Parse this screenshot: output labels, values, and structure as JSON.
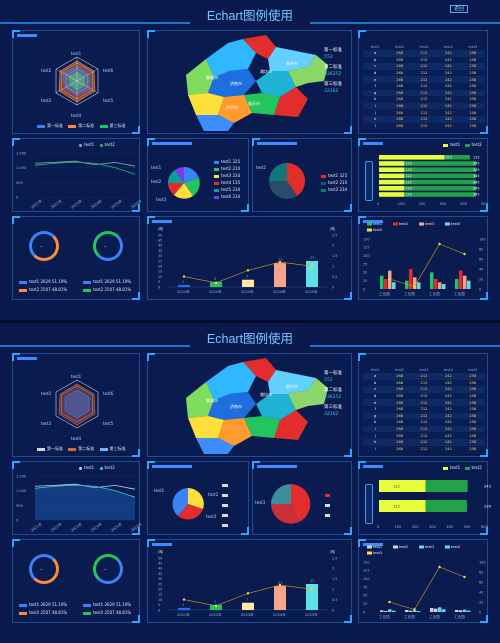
{
  "title": "Echart图例使用",
  "top_button": "返回",
  "radar": {
    "indicators": [
      "test1",
      "test6",
      "test5",
      "test4",
      "test3",
      "test2"
    ],
    "legend": [
      "第一标准",
      "第二标准",
      "第三标准"
    ]
  },
  "line_legend": [
    "test1",
    "test2"
  ],
  "line_chart": {
    "type": "line",
    "x": [
      "2021年",
      "2022年",
      "2023年",
      "2024年",
      "2025年",
      "2026年"
    ],
    "yticks": [
      "1,500",
      "1,000",
      "500",
      "0"
    ],
    "series": [
      {
        "name": "test1",
        "values": [
          1150,
          1180,
          1220,
          1100,
          1180,
          1050
        ]
      },
      {
        "name": "test2",
        "values": [
          1080,
          1150,
          1190,
          1150,
          1000,
          780
        ]
      }
    ]
  },
  "rings": [
    {
      "center": "--",
      "rows": [
        "test1  2629  51.19%",
        "test2  2507  48.81%"
      ],
      "colors": [
        "#3b82f6",
        "#ff8a3d"
      ]
    },
    {
      "center": "--",
      "rows": [
        "test1  2629  51.19%",
        "test2  2507  48.81%"
      ],
      "colors": [
        "#3b82f6",
        "#22c55e"
      ]
    }
  ],
  "map": {
    "regions": [
      "济南市",
      "淄博市",
      "潍坊市",
      "临沂市",
      "日照市",
      "青岛市",
      "烟台市",
      "威海市",
      "泰安市",
      "济宁市",
      "菏泽市",
      "聊城市",
      "德州市",
      "滨州市",
      "东营市",
      "枣庄市"
    ],
    "legend": [
      {
        "label": "第一标准",
        "value": "553"
      },
      {
        "label": "第二标准",
        "value": "836252"
      },
      {
        "label": "第三标准",
        "value": "32162"
      }
    ]
  },
  "pie1_legend": [
    "test1  325",
    "test2  210",
    "test3  234",
    "test4  135",
    "test5  234",
    "test6  234"
  ],
  "pie1_labels": [
    "test1",
    "test2",
    "test3",
    "test4",
    "test5",
    "test6"
  ],
  "pie2_legend": [
    "test1  325",
    "test2  210",
    "test3  234"
  ],
  "pie2_labels": [
    "test1",
    "test2",
    "test3"
  ],
  "pie2b_legend": [
    "test1",
    "test2",
    "test3"
  ],
  "combo": {
    "ylabel_left": "/吨",
    "ylabel_right": "/吨",
    "x": [
      "2021年",
      "2022年",
      "2023年",
      "2024年",
      "2025年"
    ],
    "bars": [
      2,
      5,
      7,
      23,
      25
    ],
    "line": [
      0.5,
      0.2,
      0.8,
      1.2,
      1.0
    ],
    "yticks_left": [
      "50",
      "45",
      "40",
      "35",
      "30",
      "25",
      "20",
      "15",
      "10",
      "5",
      "0"
    ],
    "yticks_right": [
      "2.5",
      "2",
      "1.5",
      "1",
      "0.5",
      "0"
    ]
  },
  "table": {
    "headers": [
      "test1",
      "test2",
      "test3",
      "test4",
      "test5"
    ],
    "rows": [
      [
        "a",
        "268",
        "212",
        "242",
        "258"
      ],
      [
        "b",
        "268",
        "212",
        "242",
        "258"
      ],
      [
        "c",
        "268",
        "212",
        "242",
        "258"
      ],
      [
        "d",
        "268",
        "212",
        "242",
        "258"
      ],
      [
        "e",
        "268",
        "212",
        "242",
        "258"
      ],
      [
        "f",
        "268",
        "212",
        "242",
        "258"
      ],
      [
        "g",
        "268",
        "212",
        "242",
        "258"
      ],
      [
        "h",
        "268",
        "212",
        "242",
        "258"
      ],
      [
        "i",
        "268",
        "212",
        "242",
        "258"
      ],
      [
        "j",
        "268",
        "212",
        "242",
        "258"
      ],
      [
        "k",
        "268",
        "212",
        "242",
        "258"
      ],
      [
        "l",
        "268",
        "212",
        "242",
        "258"
      ]
    ]
  },
  "hbar_legend": [
    "test1",
    "test2"
  ],
  "hbar": {
    "xticks": [
      "0",
      "100",
      "200",
      "300",
      "400",
      "500"
    ],
    "rows": [
      [
        "315",
        "122"
      ],
      [
        "122",
        "345"
      ],
      [
        "122",
        "345"
      ],
      [
        "122",
        "345"
      ],
      [
        "122",
        "345"
      ],
      [
        "122",
        "345"
      ],
      [
        "122",
        "345"
      ]
    ]
  },
  "hbar2": {
    "rows": [
      [
        "122",
        "243"
      ],
      [
        "122",
        "239"
      ]
    ],
    "xticks": [
      "0",
      "100",
      "200",
      "300",
      "400",
      "500",
      "600"
    ]
  },
  "groupbar": {
    "legend": [
      "test1",
      "test2",
      "test3",
      "test4",
      "test5"
    ],
    "x": [
      "工业园",
      "工业园",
      "工业园",
      "工业园"
    ],
    "yticks": [
      "150",
      "125",
      "100",
      "75",
      "50",
      "25",
      "0"
    ],
    "yticks_right": [
      "100",
      "80",
      "60",
      "40",
      "20",
      "0"
    ]
  }
}
